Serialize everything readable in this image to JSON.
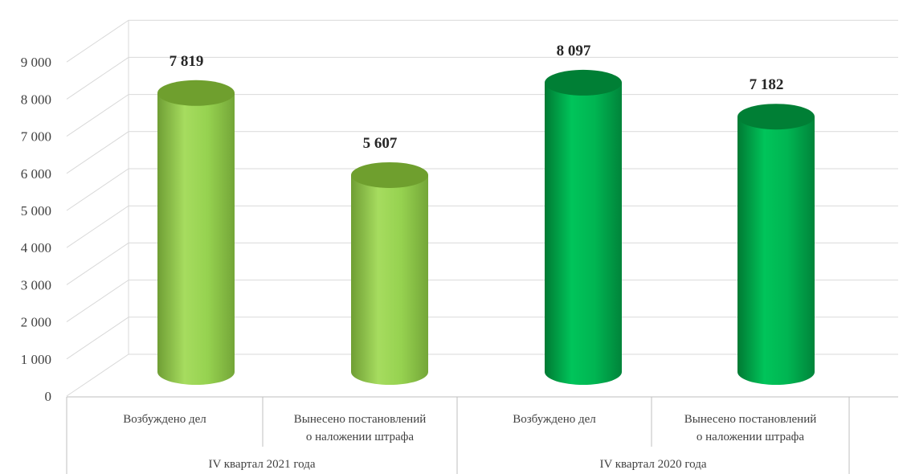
{
  "chart_data": {
    "type": "bar",
    "style": "3d-cylinder",
    "ylim": [
      0,
      9000
    ],
    "yticks": [
      "0",
      "1 000",
      "2 000",
      "3 000",
      "4 000",
      "5 000",
      "6 000",
      "7 000",
      "8 000",
      "9 000"
    ],
    "ytick_values": [
      0,
      1000,
      2000,
      3000,
      4000,
      5000,
      6000,
      7000,
      8000,
      9000
    ],
    "grid": true,
    "legend": "none",
    "groups": [
      {
        "label": "IV квартал 2021 года",
        "color": "#92D050",
        "categories": [
          {
            "line1": "Возбуждено дел",
            "line2": ""
          },
          {
            "line1": "Вынесено постановлений",
            "line2": "о наложении штрафа"
          }
        ],
        "values": [
          7819,
          5607
        ],
        "value_labels": [
          "7 819",
          "5 607"
        ]
      },
      {
        "label": "IV квартал 2020 года",
        "color": "#00B050",
        "categories": [
          {
            "line1": "Возбуждено дел",
            "line2": ""
          },
          {
            "line1": "Вынесено постановлений",
            "line2": "о наложении штрафа"
          }
        ],
        "values": [
          8097,
          7182
        ],
        "value_labels": [
          "8 097",
          "7 182"
        ]
      }
    ]
  }
}
